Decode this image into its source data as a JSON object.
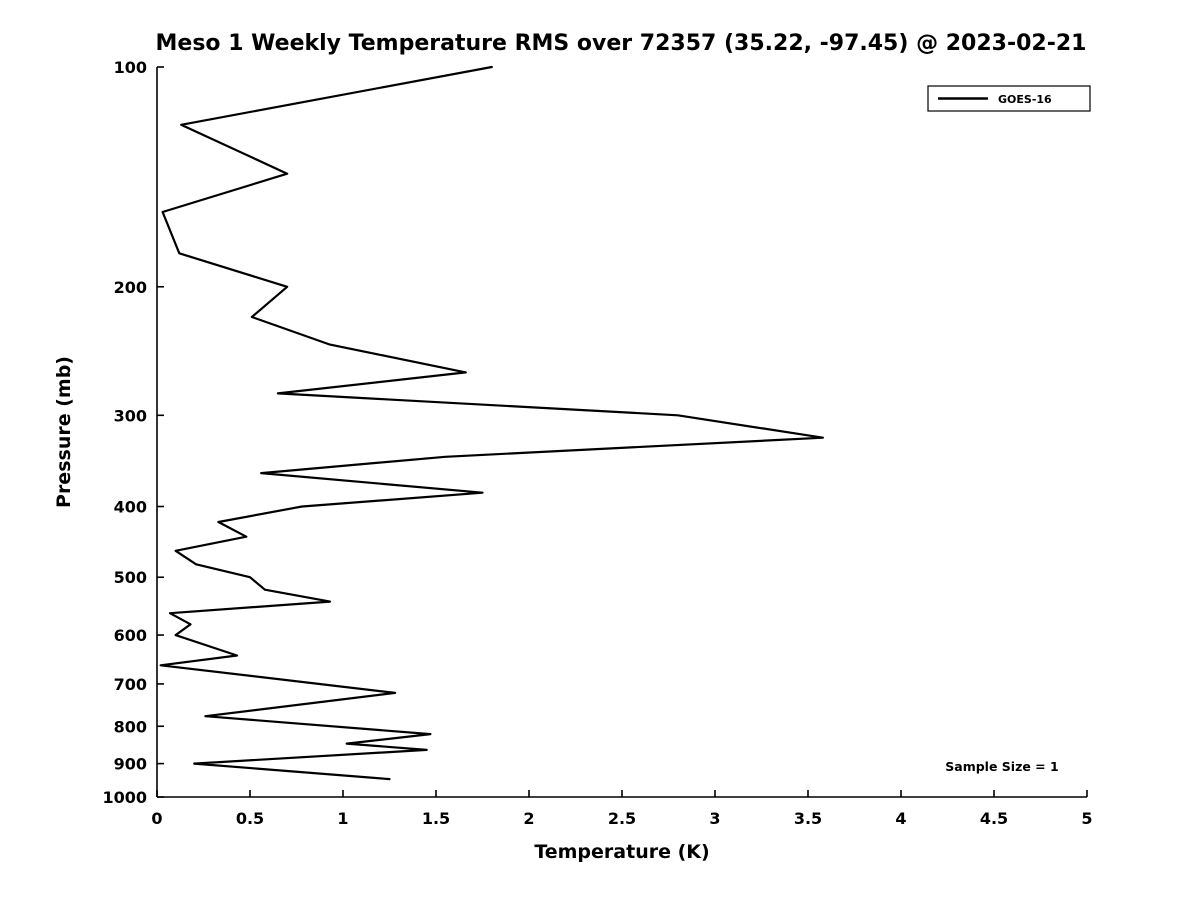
{
  "figure": {
    "background": "#ffffff",
    "line_color": "#000000"
  },
  "chart_data": {
    "type": "line",
    "title": "Meso 1 Weekly Temperature RMS over 72357 (35.22, -97.45) @ 2023-02-21",
    "xlabel": "Temperature (K)",
    "ylabel": "Pressure (mb)",
    "xlim": [
      0,
      5
    ],
    "ylim": [
      100,
      1000
    ],
    "y_axis": {
      "scale": "log",
      "inverted": true,
      "top_value": 100,
      "bottom_value": 1000
    },
    "grid": false,
    "xticks": {
      "values": [
        0,
        0.5,
        1,
        1.5,
        2,
        2.5,
        3,
        3.5,
        4,
        4.5,
        5
      ],
      "labels": [
        "0",
        "0.5",
        "1",
        "1.5",
        "2",
        "2.5",
        "3",
        "3.5",
        "4",
        "4.5",
        "5"
      ]
    },
    "yticks": {
      "values": [
        100,
        200,
        300,
        400,
        500,
        600,
        700,
        800,
        900,
        1000
      ],
      "labels": [
        "100",
        "200",
        "300",
        "400",
        "500",
        "600",
        "700",
        "800",
        "900",
        "1000"
      ]
    },
    "legend": {
      "position": "top-right",
      "entries": [
        {
          "label": "GOES-16",
          "color": "#000000",
          "line_style": "solid"
        }
      ]
    },
    "annotation": {
      "text": "Sample Size = 1"
    },
    "series": [
      {
        "name": "GOES-16",
        "color": "#000000",
        "line_width": 2.2,
        "points": [
          {
            "pressure_mb": 100,
            "rms_k": 1.8
          },
          {
            "pressure_mb": 120,
            "rms_k": 0.13
          },
          {
            "pressure_mb": 140,
            "rms_k": 0.7
          },
          {
            "pressure_mb": 158,
            "rms_k": 0.03
          },
          {
            "pressure_mb": 180,
            "rms_k": 0.12
          },
          {
            "pressure_mb": 200,
            "rms_k": 0.7
          },
          {
            "pressure_mb": 220,
            "rms_k": 0.51
          },
          {
            "pressure_mb": 240,
            "rms_k": 0.93
          },
          {
            "pressure_mb": 262,
            "rms_k": 1.66
          },
          {
            "pressure_mb": 280,
            "rms_k": 0.65
          },
          {
            "pressure_mb": 300,
            "rms_k": 2.8
          },
          {
            "pressure_mb": 322,
            "rms_k": 3.58
          },
          {
            "pressure_mb": 342,
            "rms_k": 1.55
          },
          {
            "pressure_mb": 360,
            "rms_k": 0.56
          },
          {
            "pressure_mb": 383,
            "rms_k": 1.75
          },
          {
            "pressure_mb": 400,
            "rms_k": 0.78
          },
          {
            "pressure_mb": 420,
            "rms_k": 0.33
          },
          {
            "pressure_mb": 440,
            "rms_k": 0.48
          },
          {
            "pressure_mb": 460,
            "rms_k": 0.1
          },
          {
            "pressure_mb": 480,
            "rms_k": 0.21
          },
          {
            "pressure_mb": 500,
            "rms_k": 0.5
          },
          {
            "pressure_mb": 520,
            "rms_k": 0.58
          },
          {
            "pressure_mb": 540,
            "rms_k": 0.93
          },
          {
            "pressure_mb": 560,
            "rms_k": 0.07
          },
          {
            "pressure_mb": 580,
            "rms_k": 0.18
          },
          {
            "pressure_mb": 600,
            "rms_k": 0.1
          },
          {
            "pressure_mb": 640,
            "rms_k": 0.43
          },
          {
            "pressure_mb": 660,
            "rms_k": 0.02
          },
          {
            "pressure_mb": 720,
            "rms_k": 1.28
          },
          {
            "pressure_mb": 775,
            "rms_k": 0.26
          },
          {
            "pressure_mb": 820,
            "rms_k": 1.47
          },
          {
            "pressure_mb": 845,
            "rms_k": 1.02
          },
          {
            "pressure_mb": 862,
            "rms_k": 1.45
          },
          {
            "pressure_mb": 900,
            "rms_k": 0.2
          },
          {
            "pressure_mb": 945,
            "rms_k": 1.25
          }
        ]
      }
    ]
  }
}
